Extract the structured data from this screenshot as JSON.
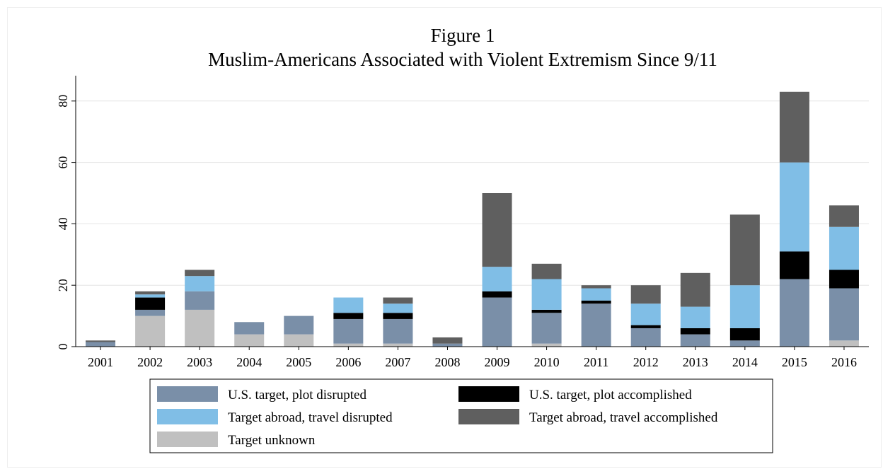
{
  "chart_data": {
    "type": "bar",
    "stacked": true,
    "title": "Figure 1",
    "subtitle": "Muslim-Americans Associated with Violent Extremism Since 9/11",
    "xlabel": "",
    "ylabel": "",
    "ylim": [
      0,
      88
    ],
    "yticks": [
      0,
      20,
      40,
      60,
      80
    ],
    "grid": true,
    "legend_position": "bottom",
    "categories": [
      "2001",
      "2002",
      "2003",
      "2004",
      "2005",
      "2006",
      "2007",
      "2008",
      "2009",
      "2010",
      "2011",
      "2012",
      "2013",
      "2014",
      "2015",
      "2016"
    ],
    "series": [
      {
        "key": "unknown",
        "name": "Target unknown",
        "color": "#c0c0c0",
        "values": [
          0,
          10,
          12,
          4,
          4,
          1,
          1,
          0,
          0,
          1,
          0,
          0,
          0,
          0,
          0,
          2
        ]
      },
      {
        "key": "us_disrupted",
        "name": "U.S. target, plot disrupted",
        "color": "#7a8fa8",
        "values": [
          1.5,
          2,
          6,
          4,
          6,
          8,
          8,
          1,
          16,
          10,
          14,
          6,
          4,
          2,
          22,
          17
        ]
      },
      {
        "key": "us_accomplished",
        "name": "U.S. target, plot accomplished",
        "color": "#000000",
        "values": [
          0,
          4,
          0,
          0,
          0,
          2,
          2,
          0,
          2,
          1,
          1,
          1,
          2,
          4,
          9,
          6
        ]
      },
      {
        "key": "abroad_disrupted",
        "name": "Target abroad, travel disrupted",
        "color": "#80bee6",
        "values": [
          0,
          1,
          5,
          0,
          0,
          5,
          3,
          0,
          8,
          10,
          4,
          7,
          7,
          14,
          29,
          14
        ]
      },
      {
        "key": "abroad_accomplished",
        "name": "Target abroad, travel accomplished",
        "color": "#5f5f5f",
        "values": [
          0.5,
          1,
          2,
          0,
          0,
          0,
          2,
          2,
          24,
          5,
          1,
          6,
          11,
          23,
          23,
          7
        ]
      }
    ],
    "legend_order": [
      "us_disrupted",
      "us_accomplished",
      "abroad_disrupted",
      "abroad_accomplished",
      "unknown"
    ]
  }
}
